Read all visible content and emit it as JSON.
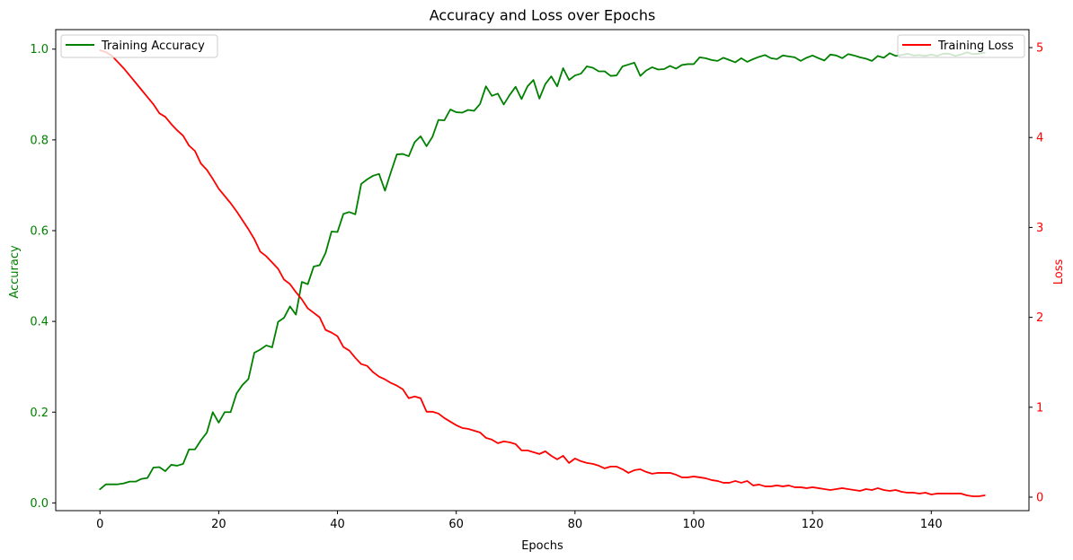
{
  "chart_data": {
    "type": "line",
    "title": "Accuracy and Loss over Epochs",
    "xlabel": "Epochs",
    "ylabel_left": "Accuracy",
    "ylabel_right": "Loss",
    "xlim": [
      -7.45,
      156.45
    ],
    "ylim_left": [
      -0.017,
      1.043
    ],
    "ylim_right": [
      -0.15,
      5.2
    ],
    "x_ticks": [
      0,
      20,
      40,
      60,
      80,
      100,
      120,
      140
    ],
    "y_left_ticks": [
      0.0,
      0.2,
      0.4,
      0.6,
      0.8,
      1.0
    ],
    "y_right_ticks": [
      0,
      1,
      2,
      3,
      4,
      5
    ],
    "grid": false,
    "legend_left_position": "upper-left",
    "legend_right_position": "upper-right",
    "colors": {
      "accuracy": "#008000",
      "loss": "#ff0000"
    },
    "x_start": 0,
    "series": [
      {
        "name": "Training Accuracy",
        "axis": "left",
        "values": [
          0.03,
          0.041,
          0.041,
          0.041,
          0.043,
          0.047,
          0.047,
          0.053,
          0.055,
          0.078,
          0.079,
          0.07,
          0.084,
          0.082,
          0.086,
          0.118,
          0.118,
          0.138,
          0.155,
          0.2,
          0.177,
          0.2,
          0.2,
          0.241,
          0.26,
          0.273,
          0.331,
          0.338,
          0.347,
          0.343,
          0.399,
          0.408,
          0.433,
          0.415,
          0.487,
          0.482,
          0.521,
          0.524,
          0.551,
          0.598,
          0.597,
          0.637,
          0.641,
          0.636,
          0.703,
          0.713,
          0.721,
          0.725,
          0.688,
          0.729,
          0.768,
          0.769,
          0.764,
          0.795,
          0.808,
          0.786,
          0.807,
          0.844,
          0.843,
          0.867,
          0.861,
          0.86,
          0.866,
          0.864,
          0.879,
          0.918,
          0.897,
          0.902,
          0.878,
          0.899,
          0.917,
          0.89,
          0.918,
          0.932,
          0.891,
          0.923,
          0.94,
          0.918,
          0.958,
          0.932,
          0.942,
          0.946,
          0.962,
          0.959,
          0.951,
          0.951,
          0.941,
          0.942,
          0.962,
          0.966,
          0.97,
          0.941,
          0.953,
          0.96,
          0.955,
          0.956,
          0.963,
          0.957,
          0.965,
          0.967,
          0.967,
          0.982,
          0.98,
          0.976,
          0.974,
          0.981,
          0.976,
          0.971,
          0.98,
          0.972,
          0.978,
          0.983,
          0.987,
          0.98,
          0.978,
          0.986,
          0.984,
          0.982,
          0.974,
          0.981,
          0.986,
          0.98,
          0.975,
          0.988,
          0.986,
          0.98,
          0.989,
          0.986,
          0.982,
          0.979,
          0.974,
          0.985,
          0.981,
          0.991,
          0.985,
          0.987,
          0.99,
          0.986,
          0.987,
          0.985,
          0.988,
          0.985,
          0.99,
          0.99,
          0.985,
          0.988,
          0.993,
          0.989,
          0.99,
          0.992
        ]
      },
      {
        "name": "Training Loss",
        "axis": "right",
        "values": [
          4.97,
          4.95,
          4.91,
          4.84,
          4.77,
          4.69,
          4.61,
          4.53,
          4.45,
          4.37,
          4.27,
          4.23,
          4.15,
          4.08,
          4.02,
          3.91,
          3.85,
          3.71,
          3.64,
          3.54,
          3.43,
          3.35,
          3.27,
          3.18,
          3.08,
          2.98,
          2.87,
          2.73,
          2.68,
          2.61,
          2.54,
          2.42,
          2.37,
          2.28,
          2.2,
          2.1,
          2.05,
          2.0,
          1.86,
          1.83,
          1.79,
          1.67,
          1.63,
          1.55,
          1.48,
          1.46,
          1.39,
          1.34,
          1.31,
          1.27,
          1.24,
          1.2,
          1.1,
          1.12,
          1.1,
          0.95,
          0.95,
          0.93,
          0.88,
          0.84,
          0.8,
          0.77,
          0.76,
          0.74,
          0.72,
          0.66,
          0.64,
          0.6,
          0.62,
          0.61,
          0.59,
          0.52,
          0.52,
          0.5,
          0.48,
          0.51,
          0.46,
          0.42,
          0.46,
          0.38,
          0.43,
          0.4,
          0.38,
          0.37,
          0.35,
          0.32,
          0.34,
          0.34,
          0.31,
          0.27,
          0.3,
          0.31,
          0.28,
          0.26,
          0.27,
          0.27,
          0.27,
          0.25,
          0.22,
          0.22,
          0.23,
          0.22,
          0.21,
          0.19,
          0.18,
          0.16,
          0.16,
          0.18,
          0.16,
          0.18,
          0.13,
          0.14,
          0.12,
          0.12,
          0.13,
          0.12,
          0.13,
          0.11,
          0.11,
          0.1,
          0.11,
          0.1,
          0.09,
          0.08,
          0.09,
          0.1,
          0.09,
          0.08,
          0.07,
          0.09,
          0.08,
          0.1,
          0.08,
          0.07,
          0.08,
          0.06,
          0.05,
          0.05,
          0.04,
          0.05,
          0.03,
          0.04,
          0.04,
          0.04,
          0.04,
          0.04,
          0.02,
          0.01,
          0.01,
          0.02
        ]
      }
    ]
  }
}
